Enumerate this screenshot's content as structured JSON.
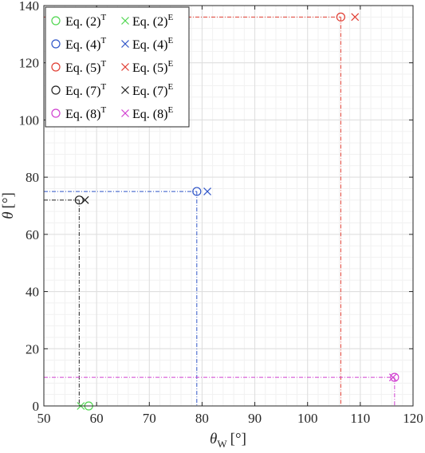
{
  "chart_data": {
    "type": "scatter",
    "xlabel": {
      "symbol": "θ",
      "sub": "W",
      "unit": "[°]"
    },
    "ylabel": {
      "symbol": "θ",
      "unit": "[°]"
    },
    "xlim": [
      50,
      120
    ],
    "ylim": [
      0,
      140
    ],
    "x_ticks": [
      50,
      60,
      70,
      80,
      90,
      100,
      110,
      120
    ],
    "y_ticks": [
      0,
      20,
      40,
      60,
      80,
      100,
      120,
      140
    ],
    "grid": "major-and-minor",
    "legend_position": "top-left",
    "series": [
      {
        "name": "Eq. (2)",
        "color": "#4fd64f",
        "theory": {
          "label": "T",
          "marker": "circle",
          "x": 58.5,
          "y": 0
        },
        "experiment": {
          "label": "E",
          "marker": "x",
          "x": 57,
          "y": 0
        }
      },
      {
        "name": "Eq. (4)",
        "color": "#2f55c8",
        "theory": {
          "label": "T",
          "marker": "circle",
          "x": 79,
          "y": 75
        },
        "experiment": {
          "label": "E",
          "marker": "x",
          "x": 81,
          "y": 75
        }
      },
      {
        "name": "Eq. (5)",
        "color": "#e03c31",
        "theory": {
          "label": "T",
          "marker": "circle",
          "x": 106.3,
          "y": 136
        },
        "experiment": {
          "label": "E",
          "marker": "x",
          "x": 109,
          "y": 136
        }
      },
      {
        "name": "Eq. (7)",
        "color": "#222222",
        "theory": {
          "label": "T",
          "marker": "circle",
          "x": 56.7,
          "y": 72
        },
        "experiment": {
          "label": "E",
          "marker": "x",
          "x": 57.8,
          "y": 72
        }
      },
      {
        "name": "Eq. (8)",
        "color": "#d040d0",
        "theory": {
          "label": "T",
          "marker": "circle",
          "x": 116.5,
          "y": 10
        },
        "experiment": {
          "label": "E",
          "marker": "x",
          "x": 116.2,
          "y": 10
        }
      }
    ]
  }
}
